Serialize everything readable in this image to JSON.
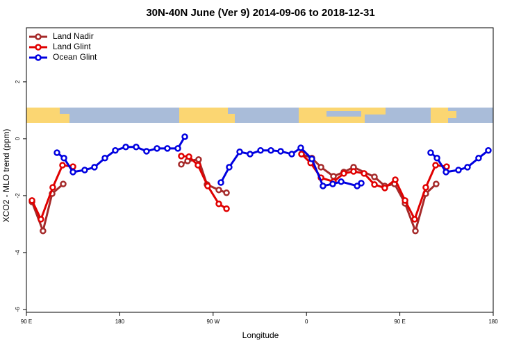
{
  "chart_data": {
    "type": "line",
    "title": "30N-40N June (Ver 9)   2014-09-06 to 2018-12-31",
    "x_label": "Longitude",
    "y_label": "XCO2 - MLO trend (ppm)",
    "xlim": [
      90,
      540
    ],
    "ylim": [
      -6.1,
      3.9
    ],
    "xticks": [
      {
        "value": 90,
        "label": "90 E"
      },
      180,
      {
        "value": 270,
        "label": "90 W"
      },
      {
        "value": 360,
        "label": "0"
      },
      {
        "value": 450,
        "label": "90 E"
      },
      {
        "value": 540,
        "label": "180"
      }
    ],
    "yticks": [
      2,
      0,
      -2,
      -4,
      -6
    ],
    "legend": "top-left",
    "series": [
      {
        "name": "Land Nadir",
        "color": "#a52a2a",
        "x": [
          95.4,
          106,
          114.8,
          125.5,
          null,
          239.3,
          245.4,
          256,
          264.1,
          275.5,
          282.9,
          null,
          355.2,
          365.2,
          374,
          386,
          396,
          405.4,
          425.5,
          435.5,
          444.9,
          455,
          465,
          475,
          485
        ],
        "values": [
          -2.22,
          -3.24,
          -1.93,
          -1.59,
          null,
          -0.9,
          -0.78,
          -0.73,
          -1.61,
          -1.8,
          -1.9,
          null,
          -0.54,
          -0.68,
          -1.0,
          -1.32,
          -1.17,
          -1.0,
          -1.34,
          -1.66,
          -1.59,
          -2.27,
          -3.24,
          -1.93,
          -1.59
        ]
      },
      {
        "name": "Land Glint",
        "color": "#e00000",
        "x": [
          95.4,
          104,
          115.4,
          124.8,
          134.9,
          null,
          239.3,
          246.7,
          255.4,
          264.8,
          275.5,
          282.9,
          null,
          355.2,
          364,
          374,
          386,
          396,
          405.4,
          415.5,
          425.5,
          435.5,
          445.6,
          455,
          464.3,
          475,
          484.4,
          495.1
        ],
        "values": [
          -2.17,
          -2.83,
          -1.71,
          -0.93,
          -0.98,
          null,
          -0.61,
          -0.63,
          -0.93,
          -1.66,
          -2.29,
          -2.46,
          null,
          -0.54,
          -0.85,
          -1.37,
          -1.51,
          -1.22,
          -1.15,
          -1.22,
          -1.61,
          -1.73,
          -1.44,
          -2.17,
          -2.83,
          -1.71,
          -0.93,
          -0.98
        ]
      },
      {
        "name": "Ocean Glint",
        "color": "#0000e0",
        "x": [
          119.5,
          126.2,
          134.9,
          146.2,
          155.6,
          165.7,
          175.7,
          185.8,
          195.8,
          205.8,
          215.9,
          225.9,
          236,
          242.7,
          null,
          277.5,
          285.5,
          295.6,
          305.6,
          315.7,
          325.7,
          335.1,
          345.8,
          354.5,
          365.2,
          375.9,
          385.3,
          393.4,
          408.8,
          412.8,
          null,
          479.7,
          485.8,
          494.5,
          506.5,
          515.2,
          525.9,
          535.3
        ],
        "values": [
          -0.49,
          -0.68,
          -1.17,
          -1.1,
          -1.0,
          -0.68,
          -0.41,
          -0.29,
          -0.29,
          -0.44,
          -0.34,
          -0.34,
          -0.34,
          0.07,
          null,
          -1.54,
          -1.0,
          -0.46,
          -0.54,
          -0.41,
          -0.41,
          -0.44,
          -0.54,
          -0.32,
          -0.71,
          -1.66,
          -1.59,
          -1.51,
          -1.66,
          -1.56,
          null,
          -0.49,
          -0.68,
          -1.17,
          -1.1,
          -1.0,
          -0.68,
          -0.41
        ]
      }
    ]
  }
}
